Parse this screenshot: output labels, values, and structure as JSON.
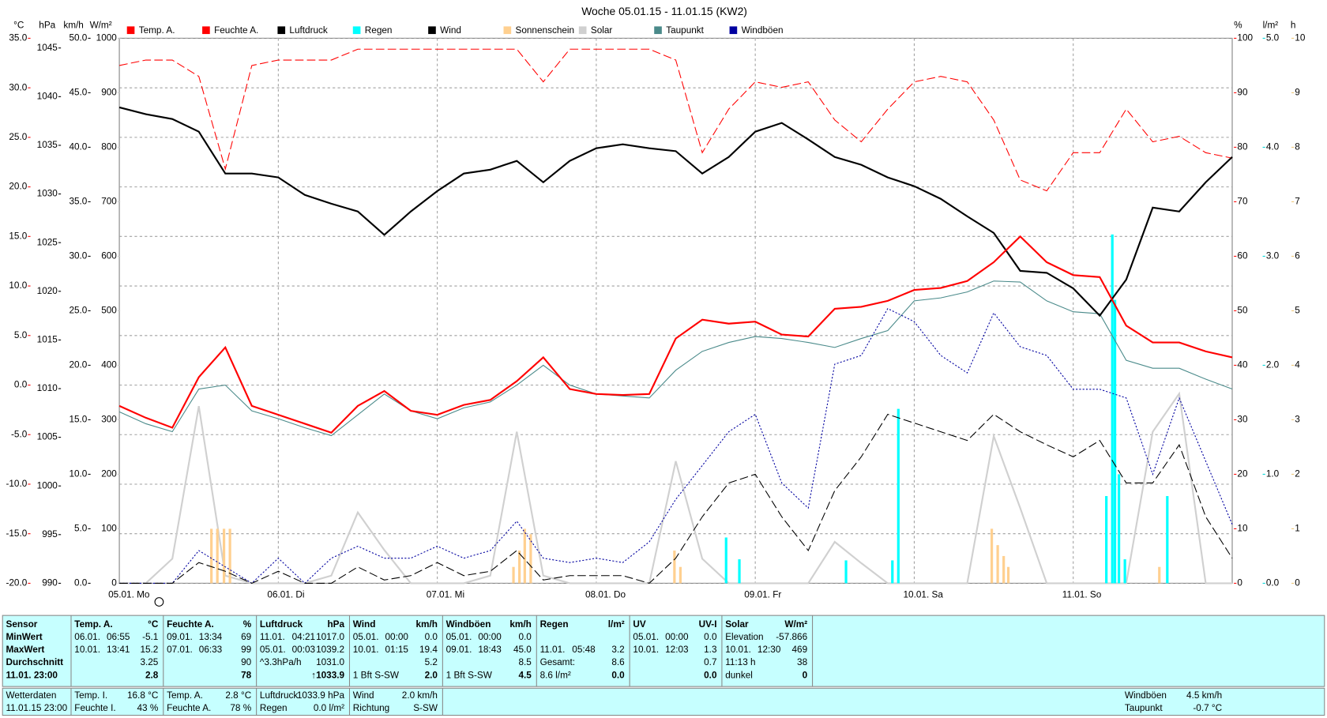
{
  "chart_data": {
    "type": "line",
    "title": "Woche 05.01.15 - 11.01.15 (KW2)",
    "axes": [
      {
        "label": "°C",
        "color": "#ff0000",
        "lim": [
          -20,
          35
        ],
        "ticks": [
          {
            "value": 35,
            "label": "35.0"
          },
          {
            "value": 30,
            "label": "30.0"
          },
          {
            "value": 25,
            "label": "25.0"
          },
          {
            "value": 20,
            "label": "20.0"
          },
          {
            "value": 15,
            "label": "15.0"
          },
          {
            "value": 10,
            "label": "10.0"
          },
          {
            "value": 5,
            "label": "5.0"
          },
          {
            "value": 0,
            "label": "0.0"
          },
          {
            "value": -5,
            "label": "-5.0"
          },
          {
            "value": -10,
            "label": "-10.0"
          },
          {
            "value": -15,
            "label": "-15.0"
          },
          {
            "value": -20,
            "label": "-20.0"
          }
        ]
      },
      {
        "label": "hPa",
        "color": "#000000",
        "lim": [
          990,
          1046
        ],
        "ticks": [
          1045,
          1040,
          1035,
          1030,
          1025,
          1020,
          1015,
          1010,
          1005,
          1000,
          995,
          990
        ]
      },
      {
        "label": "km/h",
        "color": "#000000",
        "lim": [
          0,
          50
        ],
        "ticks": [
          {
            "value": 50,
            "label": "50.0"
          },
          {
            "value": 45,
            "label": "45.0"
          },
          {
            "value": 40,
            "label": "40.0"
          },
          {
            "value": 35,
            "label": "35.0"
          },
          {
            "value": 30,
            "label": "30.0"
          },
          {
            "value": 25,
            "label": "25.0"
          },
          {
            "value": 20,
            "label": "20.0"
          },
          {
            "value": 15,
            "label": "15.0"
          },
          {
            "value": 10,
            "label": "10.0"
          },
          {
            "value": 5,
            "label": "5.0"
          },
          {
            "value": 0,
            "label": "0.0"
          }
        ]
      },
      {
        "label": "W/m²",
        "color": "#c8c8c8",
        "lim": [
          0,
          1000
        ],
        "ticks": [
          1000,
          900,
          800,
          700,
          600,
          500,
          400,
          300,
          200,
          100,
          0
        ]
      },
      {
        "label": "%",
        "color": "#ff0000",
        "lim": [
          0,
          100
        ],
        "ticks": [
          100,
          90,
          80,
          70,
          60,
          50,
          40,
          30,
          20,
          10,
          0
        ]
      },
      {
        "label": "l/m²",
        "color": "#00d8d8",
        "lim": [
          0,
          5
        ],
        "ticks": [
          {
            "value": 5,
            "label": "5.0"
          },
          {
            "value": 4,
            "label": "4.0"
          },
          {
            "value": 3,
            "label": "3.0"
          },
          {
            "value": 2,
            "label": "2.0"
          },
          {
            "value": 1,
            "label": "1.0"
          },
          {
            "value": 0,
            "label": "0.0"
          }
        ]
      },
      {
        "label": "h",
        "color": "#f0c878",
        "lim": [
          0,
          10
        ],
        "ticks": [
          10,
          9,
          8,
          7,
          6,
          5,
          4,
          3,
          2,
          1,
          0
        ]
      }
    ],
    "xlim": [
      0,
      168
    ],
    "xticks": [
      {
        "value": 0,
        "label": "05.01. Mo"
      },
      {
        "value": 24,
        "label": "06.01. Di"
      },
      {
        "value": 48,
        "label": "07.01. Mi"
      },
      {
        "value": 72,
        "label": "08.01. Do"
      },
      {
        "value": 96,
        "label": "09.01. Fr"
      },
      {
        "value": 120,
        "label": "10.01. Sa"
      },
      {
        "value": 144,
        "label": "11.01. So"
      }
    ],
    "grid": true,
    "x": [
      0,
      4,
      8,
      12,
      16,
      20,
      24,
      28,
      32,
      36,
      40,
      44,
      48,
      52,
      56,
      60,
      64,
      68,
      72,
      76,
      80,
      84,
      88,
      92,
      96,
      100,
      104,
      108,
      112,
      116,
      120,
      124,
      128,
      132,
      136,
      140,
      144,
      148,
      152,
      156,
      160,
      164,
      168
    ],
    "series": [
      {
        "name": "Temp. A.",
        "color": "#ff0000",
        "axis": 0,
        "style": "solid",
        "values": [
          -2.1,
          -3.3,
          -4.3,
          0.8,
          3.8,
          -2.1,
          -3.0,
          -3.9,
          -4.8,
          -2.1,
          -0.6,
          -2.6,
          -3.0,
          -2.0,
          -1.5,
          0.4,
          2.8,
          -0.4,
          -0.9,
          -1.0,
          -0.9,
          4.7,
          6.6,
          6.2,
          6.4,
          5.1,
          4.9,
          7.7,
          7.9,
          8.5,
          9.6,
          9.8,
          10.5,
          12.4,
          15.0,
          12.4,
          11.1,
          10.9,
          6.0,
          4.3,
          4.3,
          3.4,
          2.8
        ]
      },
      {
        "name": "Feuchte A.",
        "color": "#ff0000",
        "axis": 4,
        "style": "dashed",
        "values": [
          95,
          96,
          96,
          93,
          76,
          95,
          96,
          96,
          96,
          98,
          98,
          98,
          98,
          98,
          98,
          98,
          92,
          98,
          98,
          98,
          98,
          96,
          79,
          87,
          92,
          91,
          92,
          85,
          81,
          87,
          92,
          93,
          92,
          85,
          74,
          72,
          79,
          79,
          87,
          81,
          82,
          79,
          78
        ]
      },
      {
        "name": "Luftdruck",
        "color": "#000000",
        "axis": 1,
        "style": "solid",
        "values": [
          1038.9,
          1038.2,
          1037.7,
          1036.4,
          1032.1,
          1032.1,
          1031.7,
          1029.9,
          1029.0,
          1028.2,
          1025.8,
          1028.2,
          1030.3,
          1032.1,
          1032.5,
          1033.4,
          1031.2,
          1033.4,
          1034.7,
          1035.1,
          1034.7,
          1034.4,
          1032.1,
          1033.8,
          1036.4,
          1037.3,
          1035.6,
          1033.8,
          1033.0,
          1031.7,
          1030.8,
          1029.5,
          1027.7,
          1026.0,
          1022.1,
          1021.9,
          1020.3,
          1017.5,
          1021.2,
          1028.6,
          1028.2,
          1031.2,
          1033.8
        ]
      },
      {
        "name": "Regen",
        "color": "#00ffff",
        "axis": 5,
        "style": "bar",
        "x": [
          91.6,
          93.6,
          109.7,
          116.7,
          117.6,
          149.0,
          149.9,
          150.3,
          150.9,
          151.8,
          158.2
        ],
        "values": [
          0.42,
          0.22,
          0.21,
          0.21,
          1.6,
          0.8,
          3.2,
          2.6,
          1.0,
          0.22,
          0.8
        ]
      },
      {
        "name": "Wind",
        "color": "#000000",
        "axis": 2,
        "style": "dashed",
        "values": [
          0,
          0,
          0,
          1.9,
          1.1,
          0,
          1.1,
          0,
          0,
          1.5,
          0.3,
          0.7,
          1.9,
          0.7,
          1.1,
          3.0,
          0.3,
          0.7,
          0.7,
          0.7,
          0,
          2.3,
          6.1,
          9.2,
          10.0,
          6.1,
          3.0,
          8.5,
          11.6,
          15.5,
          14.7,
          13.9,
          13.1,
          15.5,
          13.9,
          12.7,
          11.6,
          13.1,
          9.2,
          9.2,
          12.7,
          6.1,
          2.3
        ]
      },
      {
        "name": "Sonnenschein",
        "color": "#ffd090",
        "axis": 6,
        "style": "bar",
        "x": [
          13.9,
          14.8,
          15.8,
          16.7,
          59.5,
          60.4,
          61.2,
          62.1,
          83.8,
          84.7,
          131.7,
          132.6,
          133.5,
          134.2,
          157.0
        ],
        "values": [
          1.0,
          1.0,
          1.0,
          1.0,
          0.3,
          0.6,
          1.0,
          0.9,
          0.6,
          0.3,
          1.0,
          0.7,
          0.5,
          0.3,
          0.3
        ]
      },
      {
        "name": "Solar",
        "color": "#d0d0d0",
        "axis": 3,
        "style": "solid",
        "values": [
          0,
          0,
          45,
          325,
          14,
          0,
          0,
          0,
          14,
          130,
          61,
          0,
          0,
          0,
          14,
          278,
          14,
          0,
          0,
          0,
          0,
          224,
          45,
          0,
          0,
          0,
          0,
          76,
          37,
          0,
          0,
          0,
          0,
          270,
          138,
          0,
          0,
          0,
          0,
          278,
          348,
          0,
          0
        ]
      },
      {
        "name": "Taupunkt",
        "color": "#4a8a8a",
        "axis": 0,
        "style": "thin",
        "values": [
          -2.7,
          -3.9,
          -4.7,
          -0.4,
          0.0,
          -2.6,
          -3.4,
          -4.3,
          -5.1,
          -3.0,
          -0.9,
          -2.6,
          -3.4,
          -2.3,
          -1.7,
          0.0,
          2.0,
          0.0,
          -0.9,
          -1.1,
          -1.3,
          1.5,
          3.4,
          4.3,
          4.9,
          4.7,
          4.3,
          3.8,
          4.7,
          5.5,
          8.5,
          8.8,
          9.4,
          10.5,
          10.4,
          8.5,
          7.4,
          7.2,
          2.5,
          1.7,
          1.7,
          0.6,
          -0.4
        ]
      },
      {
        "name": "Windböen",
        "color": "#0000a0",
        "axis": 2,
        "style": "dotted",
        "values": [
          0,
          0,
          0,
          3.0,
          1.5,
          0,
          2.3,
          0,
          2.3,
          3.4,
          2.3,
          2.3,
          3.4,
          2.3,
          3.0,
          5.7,
          2.3,
          1.9,
          2.3,
          1.9,
          3.8,
          7.7,
          10.8,
          13.9,
          15.5,
          9.2,
          6.9,
          20.1,
          20.9,
          25.2,
          24.0,
          20.9,
          19.3,
          24.8,
          21.7,
          20.9,
          17.8,
          17.8,
          17.0,
          10.0,
          17.0,
          11.2,
          5.4
        ]
      }
    ]
  },
  "stats": [
    {
      "header": [
        "Sensor"
      ],
      "rows": [
        [
          "MinWert"
        ],
        [
          "MaxWert"
        ],
        [
          "Durchschnitt"
        ],
        [
          "11.01. 23:00"
        ]
      ]
    },
    {
      "header": [
        "Temp. A.",
        "°C"
      ],
      "rows": [
        [
          "06.01.",
          "06:55",
          "-5.1"
        ],
        [
          "10.01.",
          "13:41",
          "15.2"
        ],
        [
          "3.25"
        ],
        [
          "2.8"
        ]
      ]
    },
    {
      "header": [
        "Feuchte A.",
        "%"
      ],
      "rows": [
        [
          "09.01.",
          "13:34",
          "69"
        ],
        [
          "07.01.",
          "06:33",
          "99"
        ],
        [
          "90"
        ],
        [
          "78"
        ]
      ]
    },
    {
      "header": [
        "Luftdruck",
        "hPa"
      ],
      "rows": [
        [
          "11.01.",
          "04:21",
          "1017.0"
        ],
        [
          "05.01.",
          "00:03",
          "1039.2"
        ],
        [
          "^3.3hPa/h",
          "1031.0"
        ],
        [
          "↑1033.9"
        ]
      ]
    },
    {
      "header": [
        "Wind",
        "km/h"
      ],
      "rows": [
        [
          "05.01.",
          "00:00",
          "0.0"
        ],
        [
          "10.01.",
          "01:15",
          "19.4"
        ],
        [
          "5.2"
        ],
        [
          "1 Bft S-SW",
          "2.0"
        ]
      ]
    },
    {
      "header": [
        "Windböen",
        "km/h"
      ],
      "rows": [
        [
          "05.01.",
          "00:00",
          "0.0"
        ],
        [
          "09.01.",
          "18:43",
          "45.0"
        ],
        [
          "8.5"
        ],
        [
          "1 Bft S-SW",
          "4.5"
        ]
      ]
    },
    {
      "header": [
        "Regen",
        "l/m²"
      ],
      "rows": [
        null,
        [
          "11.01.",
          "05:48",
          "3.2"
        ],
        [
          "Gesamt:",
          "8.6"
        ],
        [
          "8.6 l/m²",
          "0.0"
        ]
      ]
    },
    {
      "header": [
        "UV",
        "UV-I"
      ],
      "rows": [
        [
          "05.01.",
          "00:00",
          "0.0"
        ],
        [
          "10.01.",
          "12:03",
          "1.3"
        ],
        [
          "0.7"
        ],
        [
          "0.0"
        ]
      ]
    },
    {
      "header": [
        "Solar",
        "W/m²"
      ],
      "rows": [
        [
          "Elevation",
          "-57.866"
        ],
        [
          "10.01.",
          "12:30",
          "469"
        ],
        [
          "11:13 h",
          "38"
        ],
        [
          "dunkel",
          "0"
        ]
      ]
    }
  ],
  "current": [
    {
      "rows": [
        [
          "Wetterdaten"
        ],
        [
          "11.01.15 23:00"
        ]
      ]
    },
    {
      "rows": [
        [
          "Temp. I.",
          "16.8 °C"
        ],
        [
          "Feuchte I.",
          "43 %"
        ]
      ]
    },
    {
      "rows": [
        [
          "Temp. A.",
          "2.8 °C"
        ],
        [
          "Feuchte A.",
          "78 %"
        ]
      ]
    },
    {
      "rows": [
        [
          "Luftdruck",
          "1033.9 hPa"
        ],
        [
          "Regen",
          "0.0 l/m²"
        ]
      ]
    },
    {
      "rows": [
        [
          "Wind",
          "2.0 km/h"
        ],
        [
          "Richtung",
          "S-SW"
        ]
      ]
    },
    {
      "rows": [
        [
          "Windböen",
          "4.5 km/h"
        ],
        [
          "Taupunkt",
          "-0.7 °C"
        ]
      ]
    }
  ]
}
